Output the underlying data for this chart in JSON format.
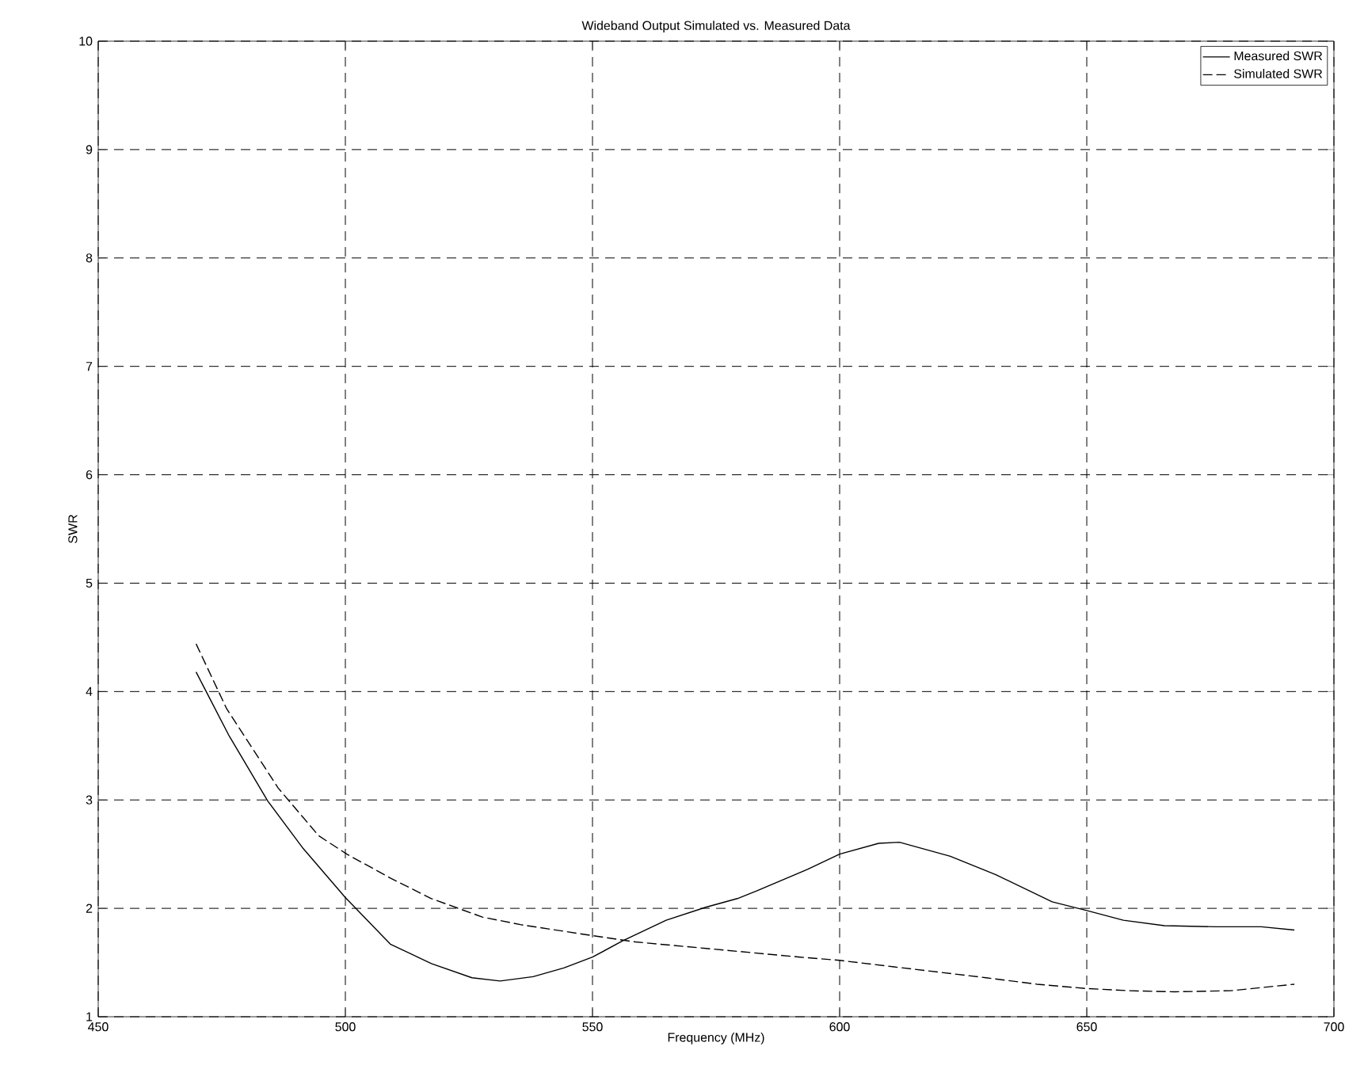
{
  "chart_data": {
    "type": "line",
    "title": "Wideband Output Simulated vs. Measured Data",
    "xlabel": "Frequency (MHz)",
    "ylabel": "SWR",
    "xlim": [
      450,
      700
    ],
    "ylim": [
      1,
      10
    ],
    "xticks": [
      450,
      500,
      550,
      600,
      650,
      700
    ],
    "yticks": [
      1,
      2,
      3,
      4,
      5,
      6,
      7,
      8,
      9,
      10
    ],
    "grid": true,
    "legend": "top right",
    "marker": "none",
    "series": [
      {
        "name": "Measured SWR",
        "color": "#000000",
        "line_style": "solid",
        "x": [
          469.8,
          476.5,
          484.3,
          491.5,
          500,
          509.1,
          517.4,
          525.6,
          531.3,
          538,
          544.2,
          550,
          556.1,
          564.9,
          572.9,
          579.3,
          583.2,
          593.5,
          600,
          607.9,
          612.1,
          622.4,
          631.6,
          643,
          650,
          657.4,
          665.7,
          676,
          685.3,
          692
        ],
        "values": [
          4.18,
          3.59,
          2.99,
          2.55,
          2.1,
          1.67,
          1.49,
          1.36,
          1.33,
          1.37,
          1.45,
          1.55,
          1.7,
          1.89,
          2.01,
          2.09,
          2.16,
          2.36,
          2.5,
          2.6,
          2.61,
          2.48,
          2.31,
          2.06,
          1.98,
          1.89,
          1.84,
          1.83,
          1.83,
          1.8
        ]
      },
      {
        "name": "Simulated SWR",
        "color": "#000000",
        "line_style": "dashed",
        "x": [
          469.8,
          476,
          486.4,
          494.6,
          500.3,
          509.1,
          517.4,
          527.7,
          535.4,
          548.3,
          558.7,
          573,
          592,
          600,
          611,
          629.6,
          639.9,
          650,
          658.5,
          667.8,
          679.1,
          692
        ],
        "values": [
          4.44,
          3.84,
          3.11,
          2.67,
          2.5,
          2.28,
          2.09,
          1.92,
          1.85,
          1.76,
          1.69,
          1.63,
          1.55,
          1.52,
          1.46,
          1.36,
          1.3,
          1.26,
          1.24,
          1.23,
          1.24,
          1.3
        ]
      }
    ]
  }
}
